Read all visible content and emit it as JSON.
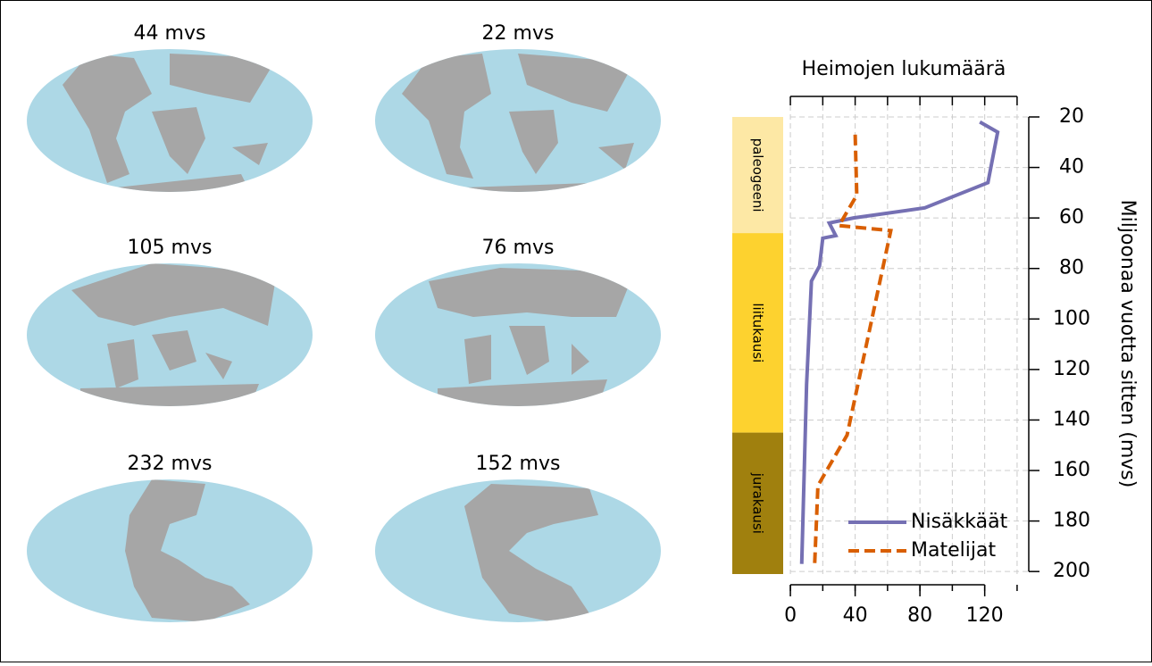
{
  "maps": [
    {
      "label": "44 mvs"
    },
    {
      "label": "22 mvs"
    },
    {
      "label": "105 mvs"
    },
    {
      "label": "76 mvs"
    },
    {
      "label": "232 mvs"
    },
    {
      "label": "152 mvs"
    }
  ],
  "chart_data": {
    "type": "line",
    "title": "Heimojen lukumäärä",
    "y_label": "Miljoonaa vuotta sitten (mvs)",
    "xlim": [
      -5,
      145
    ],
    "xticks": [
      0,
      40,
      80,
      120
    ],
    "xgrid": [
      0,
      20,
      40,
      60,
      80,
      100,
      120,
      140
    ],
    "ylim": [
      20,
      201
    ],
    "y_inverted": true,
    "yticks": [
      20,
      40,
      60,
      80,
      100,
      120,
      140,
      160,
      180,
      200
    ],
    "grid": true,
    "legend": "lower right",
    "periods": [
      {
        "name": "paleogeeni",
        "start": 20,
        "end": 66,
        "color": "#fde8a5"
      },
      {
        "name": "liitukausi",
        "start": 66,
        "end": 145,
        "color": "#fdd22f"
      },
      {
        "name": "jurakausi",
        "start": 145,
        "end": 201,
        "color": "#a0800e"
      }
    ],
    "series": [
      {
        "name": "Nisäkkäät",
        "color": "#7570b3",
        "dash": false,
        "x": [
          117,
          128,
          122,
          83,
          39,
          24,
          28,
          20,
          18,
          13,
          10,
          7
        ],
        "values": [
          22,
          26,
          46,
          56,
          60,
          62,
          67,
          68,
          79,
          85,
          126,
          197
        ]
      },
      {
        "name": "Matelijat",
        "color": "#d95f02",
        "dash": true,
        "x": [
          40,
          41,
          30,
          62,
          35,
          17,
          15
        ],
        "values": [
          27,
          51,
          63,
          65,
          146,
          166,
          197
        ]
      }
    ]
  }
}
